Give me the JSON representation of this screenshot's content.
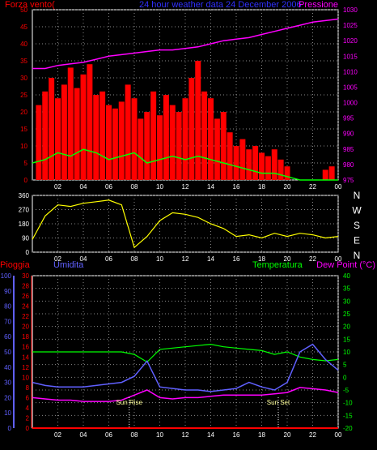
{
  "chart_data": [
    {
      "type": "bar",
      "panel": "wind",
      "title": "24 hour weather data 24 December 2006",
      "ylabel_left": "Forza vento(",
      "ylabel_right": "Pressione",
      "xticks": [
        "02",
        "04",
        "06",
        "08",
        "10",
        "12",
        "14",
        "16",
        "18",
        "20",
        "22",
        "00"
      ],
      "ylim_left": [
        0,
        50
      ],
      "yticks_left": [
        0,
        5,
        10,
        15,
        20,
        25,
        30,
        35,
        40,
        45,
        50
      ],
      "ylim_right": [
        975,
        1030
      ],
      "yticks_right": [
        975,
        980,
        985,
        990,
        995,
        1000,
        1005,
        1010,
        1015,
        1020,
        1025,
        1030
      ],
      "grid": true,
      "series": [
        {
          "name": "Gust",
          "color": "#ff0000",
          "type": "bar",
          "x": [
            0.5,
            1,
            1.5,
            2,
            2.5,
            3,
            3.5,
            4,
            4.5,
            5,
            5.5,
            6,
            6.5,
            7,
            7.5,
            8,
            8.5,
            9,
            9.5,
            10,
            10.5,
            11,
            11.5,
            12,
            12.5,
            13,
            13.5,
            14,
            14.5,
            15,
            15.5,
            16,
            16.5,
            17,
            17.5,
            18,
            18.5,
            19,
            19.5,
            20,
            20.5,
            21,
            21.5,
            22,
            22.5,
            23,
            23.5
          ],
          "values": [
            22,
            26,
            30,
            24,
            28,
            33,
            27,
            31,
            34,
            25,
            26,
            22,
            21,
            23,
            28,
            24,
            18,
            20,
            26,
            19,
            25,
            22,
            20,
            24,
            30,
            35,
            26,
            24,
            18,
            20,
            14,
            10,
            12,
            9,
            10,
            8,
            7,
            9,
            6,
            4,
            0,
            0,
            0,
            0,
            0,
            3,
            4
          ]
        },
        {
          "name": "Speed",
          "color": "#00ff00",
          "type": "line",
          "x": [
            0,
            1,
            2,
            3,
            4,
            5,
            6,
            7,
            8,
            9,
            10,
            11,
            12,
            13,
            14,
            15,
            16,
            17,
            18,
            19,
            20,
            21,
            22,
            23,
            24
          ],
          "values": [
            5,
            6,
            8,
            7,
            9,
            8,
            6,
            7,
            8,
            5,
            6,
            7,
            6,
            7,
            6,
            5,
            4,
            3,
            2,
            2,
            1,
            0,
            0,
            0,
            0
          ]
        },
        {
          "name": "Pressione",
          "color": "#ff00ff",
          "type": "line",
          "axis": "right",
          "x": [
            0,
            1,
            2,
            3,
            4,
            5,
            6,
            7,
            8,
            9,
            10,
            11,
            12,
            13,
            14,
            15,
            16,
            17,
            18,
            19,
            20,
            21,
            22,
            23,
            24
          ],
          "values": [
            1011,
            1011,
            1012,
            1012.5,
            1013,
            1014,
            1015,
            1015.5,
            1016,
            1016.5,
            1017,
            1017,
            1017.5,
            1018,
            1019,
            1020,
            1020.5,
            1021,
            1022,
            1023,
            1024,
            1025,
            1026,
            1026.5,
            1027
          ]
        }
      ]
    },
    {
      "type": "line",
      "panel": "direction",
      "xticks": [
        "02",
        "04",
        "06",
        "08",
        "10",
        "12",
        "14",
        "16",
        "18",
        "20",
        "22",
        "00"
      ],
      "ylim": [
        0,
        360
      ],
      "yticks": [
        0,
        90,
        180,
        270,
        360
      ],
      "direction_labels": [
        "N",
        "W",
        "S",
        "E",
        "N"
      ],
      "series": [
        {
          "name": "Direzione",
          "color": "#ffff00",
          "x": [
            0,
            1,
            2,
            3,
            4,
            5,
            6,
            7,
            8,
            9,
            10,
            11,
            12,
            13,
            14,
            15,
            16,
            17,
            18,
            19,
            20,
            21,
            22,
            23,
            24
          ],
          "values": [
            80,
            230,
            300,
            290,
            310,
            320,
            330,
            300,
            30,
            100,
            200,
            250,
            240,
            220,
            180,
            150,
            100,
            110,
            90,
            120,
            100,
            120,
            110,
            90,
            100
          ]
        }
      ]
    },
    {
      "type": "line",
      "panel": "rain-humidity-temperature",
      "labels": {
        "pioggia": "Pioggia",
        "umidita": "Umidita",
        "temperatura": "Temperatura",
        "dew_point": "Dew Point (°C)"
      },
      "xticks": [
        "02",
        "04",
        "06",
        "08",
        "10",
        "12",
        "14",
        "16",
        "18",
        "20",
        "22",
        "00"
      ],
      "ylim_humidity": [
        0,
        100
      ],
      "yticks_humidity": [
        0,
        10,
        20,
        30,
        40,
        50,
        60,
        70,
        80,
        90,
        100
      ],
      "ylim_rain": [
        0,
        30
      ],
      "yticks_rain": [
        0,
        2,
        4,
        6,
        8,
        10,
        12,
        14,
        16,
        18,
        20,
        22,
        24,
        26,
        28,
        30
      ],
      "ylim_temp": [
        -20,
        40
      ],
      "yticks_temp": [
        -20,
        -15,
        -10,
        -5,
        0,
        5,
        10,
        15,
        20,
        25,
        30,
        35,
        40
      ],
      "annotations": [
        {
          "text": "Sun Rise",
          "x": 7.6
        },
        {
          "text": "Sun Set",
          "x": 19.3
        }
      ],
      "series": [
        {
          "name": "Temperatura",
          "color": "#00ff00",
          "axis": "temp",
          "x": [
            0,
            1,
            2,
            3,
            4,
            5,
            6,
            7,
            8,
            9,
            10,
            11,
            12,
            13,
            14,
            15,
            16,
            17,
            18,
            19,
            20,
            21,
            22,
            23,
            24
          ],
          "values": [
            10,
            10,
            10,
            10,
            10,
            10,
            10,
            10,
            9,
            6,
            11,
            11.5,
            12,
            12.5,
            13,
            12,
            11.5,
            11,
            10.5,
            9,
            10,
            8,
            7,
            6.5,
            7
          ]
        },
        {
          "name": "Umidita",
          "color": "#6060ff",
          "axis": "humidity",
          "x": [
            0,
            1,
            2,
            3,
            4,
            5,
            6,
            7,
            8,
            9,
            10,
            11,
            12,
            13,
            14,
            15,
            16,
            17,
            18,
            19,
            20,
            21,
            22,
            23,
            24
          ],
          "values": [
            30,
            28,
            27,
            27,
            27,
            28,
            29,
            30,
            34,
            44,
            27,
            26,
            25,
            25,
            24,
            25,
            26,
            30,
            27,
            25,
            30,
            50,
            55,
            45,
            38
          ]
        },
        {
          "name": "Dew Point",
          "color": "#ff00ff",
          "axis": "temp",
          "x": [
            0,
            1,
            2,
            3,
            4,
            5,
            6,
            7,
            8,
            9,
            10,
            11,
            12,
            13,
            14,
            15,
            16,
            17,
            18,
            19,
            20,
            21,
            22,
            23,
            24
          ],
          "values": [
            -8,
            -8.5,
            -9,
            -9,
            -9.5,
            -9.5,
            -9.5,
            -9,
            -7,
            -5,
            -8,
            -8.5,
            -8,
            -8,
            -7.5,
            -7,
            -7,
            -7,
            -7,
            -6.5,
            -6,
            -4,
            -4.5,
            -5,
            -6
          ]
        },
        {
          "name": "Pioggia",
          "color": "#ff0000",
          "axis": "rain",
          "x": [
            0,
            24
          ],
          "values": [
            0,
            0
          ]
        }
      ]
    }
  ]
}
